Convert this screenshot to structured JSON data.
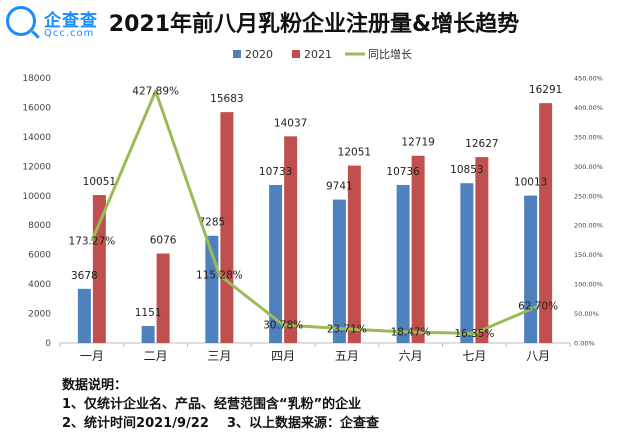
{
  "logo": {
    "name": "企查查",
    "domain": "Qcc.com"
  },
  "chart_data": {
    "type": "bar",
    "title": "2021年前八月乳粉企业注册量&增长趋势",
    "categories": [
      "一月",
      "二月",
      "三月",
      "四月",
      "五月",
      "六月",
      "七月",
      "八月"
    ],
    "series": [
      {
        "name": "2020",
        "type": "bar",
        "color": "#4f81bd",
        "values": [
          3678,
          1151,
          7285,
          10733,
          9741,
          10736,
          10853,
          10013
        ],
        "labels": [
          "3678",
          "1151",
          "7285",
          "10733",
          "9741",
          "10736",
          "10853",
          "10013"
        ]
      },
      {
        "name": "2021",
        "type": "bar",
        "color": "#c0504d",
        "values": [
          10051,
          6076,
          15683,
          14037,
          12051,
          12719,
          12627,
          16291
        ],
        "labels": [
          "10051",
          "6076",
          "15683",
          "14037",
          "12051",
          "12719",
          "12627",
          "16291"
        ]
      },
      {
        "name": "同比增长",
        "type": "line",
        "axis": "right",
        "color": "#9bbb59",
        "values": [
          173.27,
          427.89,
          115.28,
          30.78,
          23.71,
          18.47,
          16.35,
          62.7
        ],
        "labels": [
          "173.27%",
          "427.89%",
          "115.28%",
          "30.78%",
          "23.71%",
          "18.47%",
          "16.35%",
          "62.70%"
        ]
      }
    ],
    "y_left": {
      "ylim": [
        0,
        18000
      ],
      "ticks": [
        "0",
        "2000",
        "4000",
        "6000",
        "8000",
        "10000",
        "12000",
        "14000",
        "16000",
        "18000"
      ]
    },
    "y_right": {
      "ylim": [
        0,
        450
      ],
      "ticks": [
        "0.00%",
        "50.00%",
        "100.00%",
        "150.00%",
        "200.00%",
        "250.00%",
        "300.00%",
        "350.00%",
        "400.00%",
        "450.00%"
      ]
    },
    "legend": "top-center",
    "grid": false
  },
  "notes": {
    "heading": "数据说明：",
    "line1": "1、仅统计企业名、产品、经营范围含“乳粉”的企业",
    "line2": "2、统计时间2021/9/22    3、以上数据来源：企查查"
  }
}
